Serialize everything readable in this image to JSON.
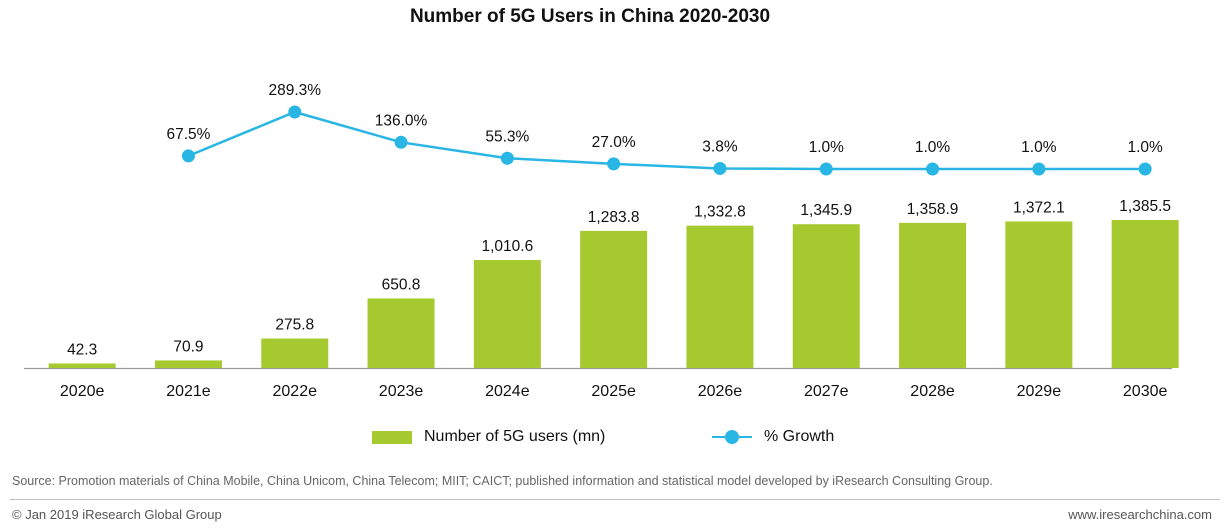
{
  "title": "Number of 5G Users in China 2020-2030",
  "colors": {
    "bar": "#a6c92f",
    "line": "#29b6e5",
    "axis": "#9a9a9a",
    "text": "#111111"
  },
  "chart_data": {
    "type": "bar",
    "title": "Number of 5G Users in China 2020-2030",
    "categories": [
      "2020e",
      "2021e",
      "2022e",
      "2023e",
      "2024e",
      "2025e",
      "2026e",
      "2027e",
      "2028e",
      "2029e",
      "2030e"
    ],
    "series": [
      {
        "name": "Number of 5G users (mn)",
        "type": "bar",
        "values": [
          42.3,
          70.9,
          275.8,
          650.8,
          1010.6,
          1283.8,
          1332.8,
          1345.9,
          1358.9,
          1372.1,
          1385.5
        ],
        "labels": [
          "42.3",
          "70.9",
          "275.8",
          "650.8",
          "1,010.6",
          "1,283.8",
          "1,332.8",
          "1,345.9",
          "1,358.9",
          "1,372.1",
          "1,385.5"
        ]
      },
      {
        "name": "% Growth",
        "type": "line",
        "values": [
          null,
          67.5,
          289.3,
          136.0,
          55.3,
          27.0,
          3.8,
          1.0,
          1.0,
          1.0,
          1.0
        ],
        "labels": [
          null,
          "67.5%",
          "289.3%",
          "136.0%",
          "55.3%",
          "27.0%",
          "3.8%",
          "1.0%",
          "1.0%",
          "1.0%",
          "1.0%"
        ]
      }
    ],
    "xlabel": "",
    "ylabel": "",
    "legend_position": "bottom",
    "grid": false
  },
  "legend": {
    "bar_label": "Number of 5G users (mn)",
    "line_label": "% Growth"
  },
  "footer": {
    "source": "Source: Promotion materials of China Mobile, China Unicom, China Telecom; MIIT; CAICT; published information and statistical model developed by iResearch Consulting Group.",
    "copyright": "© Jan 2019 iResearch Global Group",
    "website": "www.iresearchchina.com"
  }
}
